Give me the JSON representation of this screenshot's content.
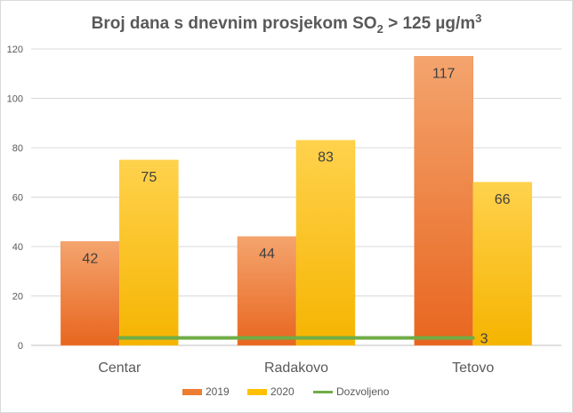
{
  "chart_data": {
    "type": "bar",
    "title": "Broj dana s dnevnim prosjekom SO",
    "title_sub": "2",
    "title_rest": " > 125 µg/m",
    "title_sup": "3",
    "categories": [
      "Centar",
      "Radakovo",
      "Tetovo"
    ],
    "series": [
      {
        "name": "2019",
        "values": [
          42,
          44,
          117
        ],
        "color": "#ed7d31"
      },
      {
        "name": "2020",
        "values": [
          75,
          83,
          66
        ],
        "color": "#ffc000"
      }
    ],
    "line": {
      "name": "Dozvoljeno",
      "value": 3,
      "label": "3",
      "color": "#70ad47"
    },
    "ylim": [
      0,
      120
    ],
    "yticks": [
      0,
      20,
      40,
      60,
      80,
      100,
      120
    ],
    "grid": true,
    "legend": "bottom"
  }
}
